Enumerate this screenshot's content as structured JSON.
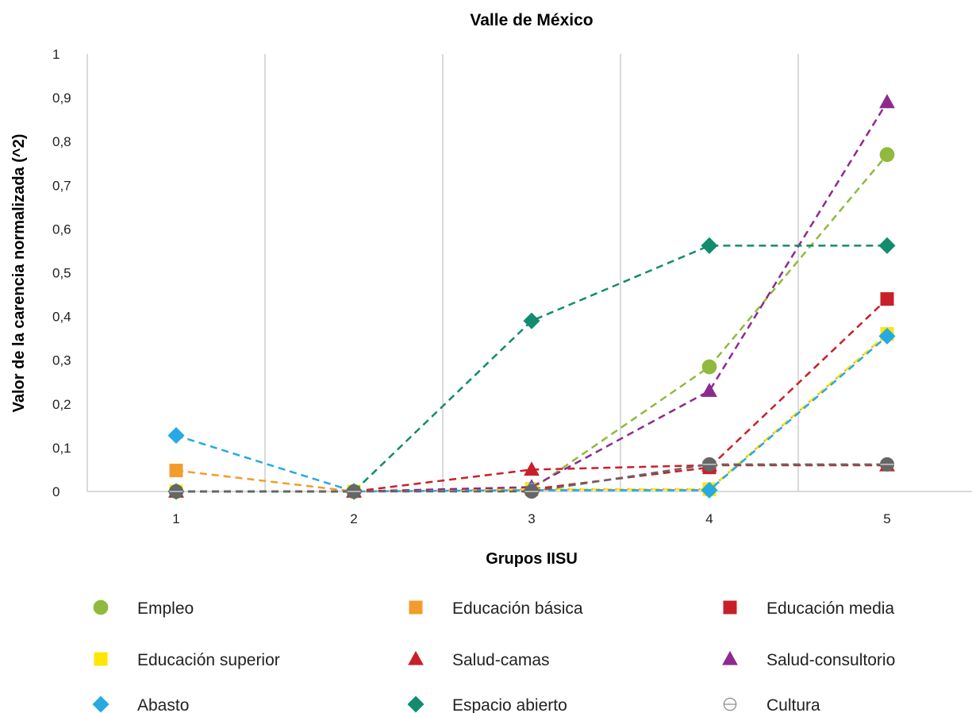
{
  "chart_data": {
    "type": "line",
    "title": "Valle de México",
    "xlabel": "Grupos IISU",
    "ylabel": "Valor de la carencia normalizada (^2)",
    "categories": [
      "1",
      "2",
      "3",
      "4",
      "5"
    ],
    "ylim": [
      0,
      1
    ],
    "yticks": [
      "0",
      "0,1",
      "0,2",
      "0,3",
      "0,4",
      "0,5",
      "0,6",
      "0,7",
      "0,8",
      "0,9",
      "1"
    ],
    "grid": "vertical",
    "legend_position": "bottom",
    "series": [
      {
        "name": "Empleo",
        "values": [
          0,
          0,
          0.005,
          0.285,
          0.77
        ],
        "color": "#8fba3d",
        "marker": "circle"
      },
      {
        "name": "Educación básica",
        "values": [
          0.048,
          0,
          0.005,
          0.005,
          0.36
        ],
        "color": "#f39c2c",
        "marker": "square"
      },
      {
        "name": "Educación media",
        "values": [
          0,
          0,
          0.005,
          0.055,
          0.44
        ],
        "color": "#c8202a",
        "marker": "square"
      },
      {
        "name": "Educación superior",
        "values": [
          0,
          0,
          0.005,
          0.005,
          0.36
        ],
        "color": "#ffe600",
        "marker": "square"
      },
      {
        "name": "Salud-camas",
        "values": [
          0,
          0,
          0.05,
          0.06,
          0.06
        ],
        "color": "#c8202a",
        "marker": "triangle"
      },
      {
        "name": "Salud-consultorio",
        "values": [
          0,
          0,
          0.01,
          0.23,
          0.89
        ],
        "color": "#8e2a8e",
        "marker": "triangle"
      },
      {
        "name": "Abasto",
        "values": [
          0.128,
          0,
          0.003,
          0.003,
          0.355
        ],
        "color": "#27a9e1",
        "marker": "diamond"
      },
      {
        "name": "Espacio abierto",
        "values": [
          0,
          0,
          0.39,
          0.562,
          0.562
        ],
        "color": "#128c6c",
        "marker": "diamond"
      },
      {
        "name": "Cultura",
        "values": [
          0,
          0,
          0,
          0.062,
          0.062
        ],
        "color": "#666666",
        "marker": "circle-line"
      }
    ]
  }
}
